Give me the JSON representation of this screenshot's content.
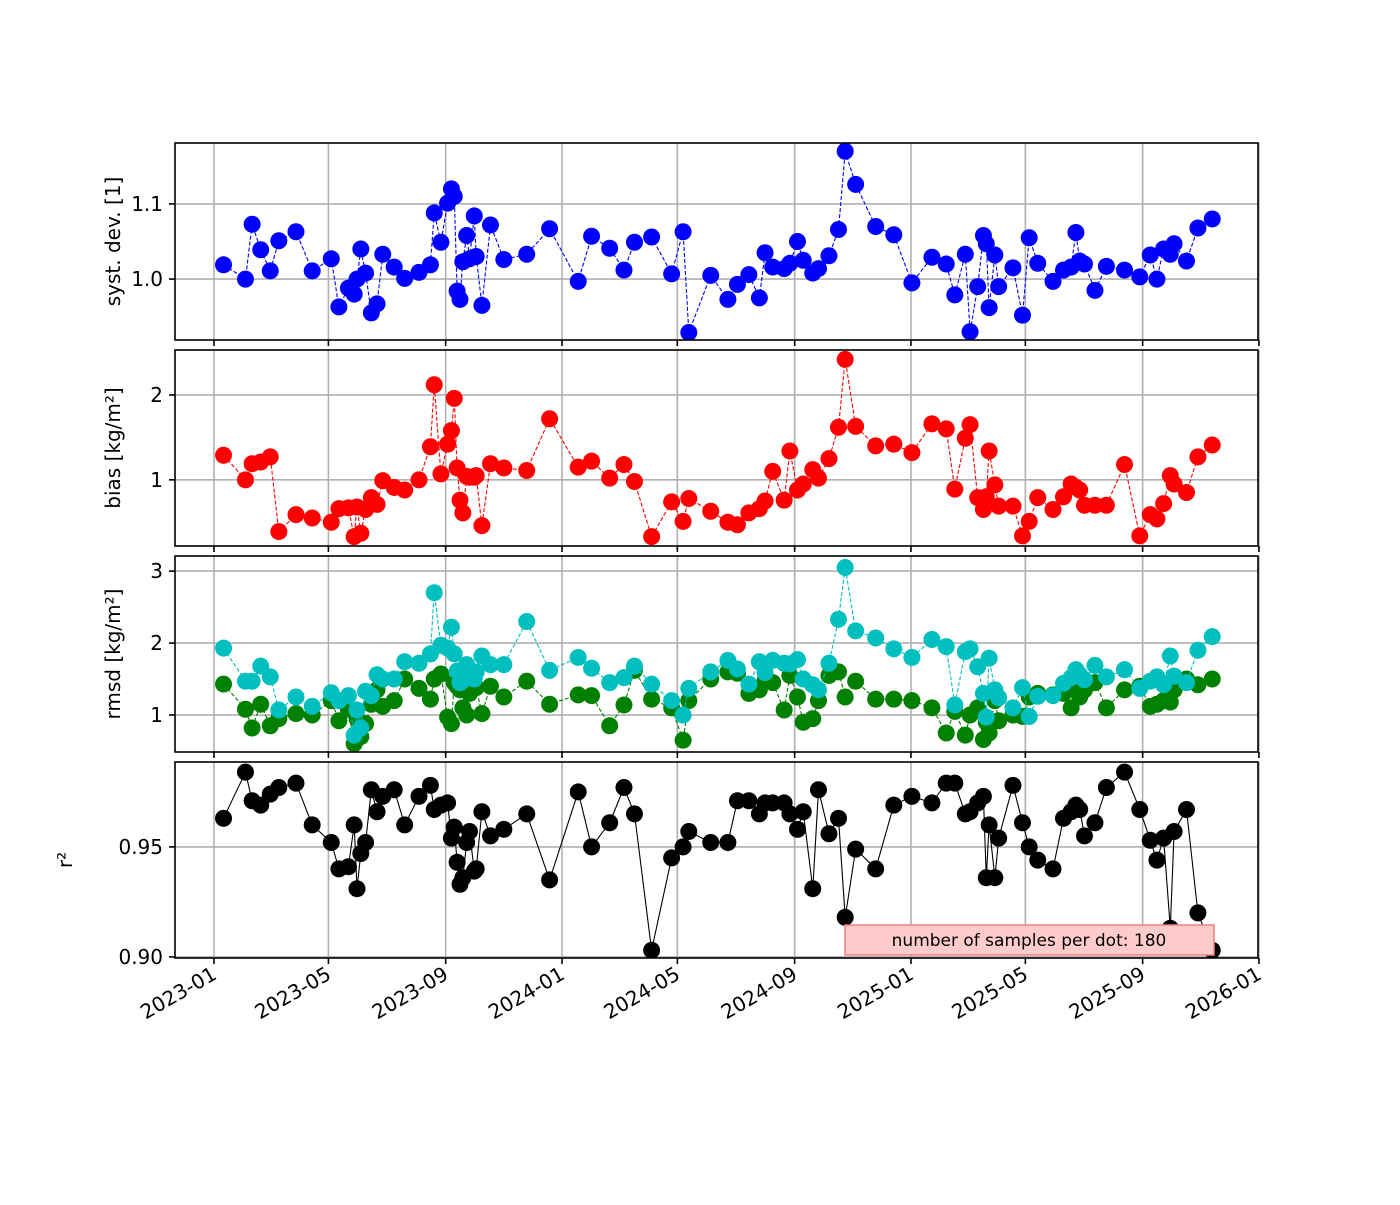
{
  "chart_data": {
    "type": "line",
    "x_axis": {
      "ticks": [
        "2023-01",
        "2023-05",
        "2023-09",
        "2024-01",
        "2024-05",
        "2024-09",
        "2025-01",
        "2025-05",
        "2025-09",
        "2026-01"
      ],
      "range": [
        "2022-12-12",
        "2026-01-01"
      ]
    },
    "x": [
      "2023-01-11",
      "2023-02-03",
      "2023-02-10",
      "2023-02-19",
      "2023-03-01",
      "2023-03-10",
      "2023-03-28",
      "2023-04-14",
      "2023-05-04",
      "2023-05-12",
      "2023-05-22",
      "2023-05-28",
      "2023-05-31",
      "2023-06-04",
      "2023-06-09",
      "2023-06-15",
      "2023-06-21",
      "2023-06-27",
      "2023-07-09",
      "2023-07-20",
      "2023-08-04",
      "2023-08-16",
      "2023-08-20",
      "2023-08-27",
      "2023-09-03",
      "2023-09-07",
      "2023-09-10",
      "2023-09-13",
      "2023-09-16",
      "2023-09-19",
      "2023-09-23",
      "2023-09-26",
      "2023-10-01",
      "2023-10-03",
      "2023-10-09",
      "2023-10-18",
      "2023-11-01",
      "2023-11-25",
      "2023-12-19",
      "2024-01-18",
      "2024-02-01",
      "2024-02-20",
      "2024-03-06",
      "2024-03-17",
      "2024-04-04",
      "2024-04-25",
      "2024-05-07",
      "2024-05-13",
      "2024-06-05",
      "2024-06-23",
      "2024-07-03",
      "2024-07-15",
      "2024-07-26",
      "2024-08-01",
      "2024-08-09",
      "2024-08-21",
      "2024-08-27",
      "2024-09-04",
      "2024-09-10",
      "2024-09-20",
      "2024-09-26",
      "2024-10-07",
      "2024-10-17",
      "2024-10-24",
      "2024-11-04",
      "2024-11-25",
      "2024-12-14",
      "2025-01-02",
      "2025-01-23",
      "2025-02-07",
      "2025-02-16",
      "2025-02-27",
      "2025-03-04",
      "2025-03-12",
      "2025-03-18",
      "2025-03-21",
      "2025-03-24",
      "2025-03-30",
      "2025-04-03",
      "2025-04-18",
      "2025-04-28",
      "2025-05-05",
      "2025-05-14",
      "2025-05-30",
      "2025-06-10",
      "2025-06-18",
      "2025-06-23",
      "2025-06-27",
      "2025-07-02",
      "2025-07-13",
      "2025-07-25",
      "2025-08-13",
      "2025-08-29",
      "2025-09-09",
      "2025-09-16",
      "2025-09-23",
      "2025-09-30",
      "2025-10-04",
      "2025-10-17",
      "2025-10-29",
      "2025-11-13"
    ],
    "panels": [
      {
        "ylabel": "syst. dev. [1]",
        "ylim": [
          0.919,
          1.181
        ],
        "yticks": [
          "1.0",
          "1.1"
        ],
        "ytick_values": [
          1.0,
          1.1
        ],
        "series": [
          {
            "name": "syst. dev.",
            "color": "#0000ff",
            "linestyle": "dashed",
            "values": [
              1.019,
              1.0,
              1.073,
              1.039,
              1.011,
              1.051,
              1.063,
              1.011,
              1.027,
              0.963,
              0.988,
              0.98,
              1.0,
              1.04,
              1.008,
              0.955,
              0.967,
              1.033,
              1.016,
              1.001,
              1.009,
              1.019,
              1.088,
              1.049,
              1.101,
              1.12,
              1.11,
              0.984,
              0.973,
              1.023,
              1.058,
              1.027,
              1.084,
              1.03,
              0.965,
              1.072,
              1.026,
              1.033,
              1.067,
              0.997,
              1.057,
              1.041,
              1.012,
              1.049,
              1.056,
              1.007,
              1.063,
              0.929,
              1.005,
              0.973,
              0.993,
              1.006,
              0.975,
              1.035,
              1.016,
              1.014,
              1.021,
              1.05,
              1.025,
              1.008,
              1.014,
              1.031,
              1.066,
              1.17,
              1.126,
              1.07,
              1.059,
              0.995,
              1.029,
              1.02,
              0.979,
              1.033,
              0.93,
              0.99,
              1.058,
              1.047,
              0.962,
              1.032,
              0.99,
              1.015,
              0.952,
              1.055,
              1.021,
              0.997,
              1.012,
              1.016,
              1.062,
              1.024,
              1.02,
              0.985,
              1.017,
              1.012,
              1.003,
              1.032,
              1.0,
              1.04,
              1.033,
              1.047,
              1.024,
              1.068,
              1.08
            ]
          }
        ]
      },
      {
        "ylabel": "bias [kg/m²]",
        "ylim": [
          0.22,
          2.53
        ],
        "yticks": [
          "1",
          "2"
        ],
        "ytick_values": [
          1,
          2
        ],
        "series": [
          {
            "name": "bias",
            "color": "#ff0000",
            "linestyle": "dashed",
            "values": [
              1.29,
              1.0,
              1.19,
              1.21,
              1.27,
              0.39,
              0.59,
              0.55,
              0.5,
              0.66,
              0.67,
              0.33,
              0.68,
              0.37,
              0.65,
              0.79,
              0.71,
              0.99,
              0.91,
              0.88,
              1.0,
              1.39,
              2.12,
              1.07,
              1.42,
              1.58,
              1.96,
              1.14,
              0.76,
              0.61,
              1.04,
              1.03,
              1.03,
              1.05,
              0.46,
              1.19,
              1.14,
              1.11,
              1.72,
              1.15,
              1.22,
              1.02,
              1.18,
              0.98,
              0.33,
              0.74,
              0.51,
              0.78,
              0.63,
              0.5,
              0.47,
              0.61,
              0.66,
              0.75,
              1.1,
              0.76,
              1.34,
              0.88,
              0.95,
              1.12,
              1.02,
              1.25,
              1.62,
              2.42,
              1.63,
              1.4,
              1.42,
              1.32,
              1.66,
              1.6,
              0.89,
              1.49,
              1.65,
              0.79,
              0.65,
              0.8,
              1.34,
              0.94,
              0.69,
              0.69,
              0.34,
              0.51,
              0.79,
              0.65,
              0.8,
              0.95,
              0.91,
              0.88,
              0.7,
              0.7,
              0.7,
              1.18,
              0.34,
              0.59,
              0.54,
              0.72,
              1.05,
              0.95,
              0.85,
              1.27,
              1.41
            ]
          }
        ]
      },
      {
        "ylabel": "rmsd [kg/m²]",
        "ylim": [
          0.486,
          3.21
        ],
        "yticks": [
          "1",
          "2",
          "3"
        ],
        "ytick_values": [
          1,
          2,
          3
        ],
        "series": [
          {
            "name": "rmsd (green)",
            "color": "#008000",
            "linestyle": "dashed",
            "values": [
              1.43,
              1.08,
              0.82,
              1.15,
              0.85,
              0.95,
              1.02,
              1.0,
              1.2,
              0.92,
              1.08,
              0.6,
              0.95,
              0.7,
              0.88,
              1.15,
              1.35,
              1.12,
              1.2,
              1.5,
              1.37,
              1.22,
              1.5,
              1.57,
              0.97,
              0.88,
              1.45,
              1.4,
              1.35,
              1.1,
              1.0,
              1.3,
              1.4,
              1.38,
              1.02,
              1.4,
              1.25,
              1.47,
              1.15,
              1.28,
              1.27,
              0.85,
              1.14,
              1.62,
              1.22,
              1.1,
              0.65,
              1.2,
              1.5,
              1.6,
              1.58,
              1.3,
              1.35,
              1.48,
              1.45,
              1.07,
              1.55,
              1.25,
              0.9,
              0.95,
              1.2,
              1.55,
              1.6,
              1.25,
              1.47,
              1.22,
              1.22,
              1.2,
              1.1,
              0.75,
              1.05,
              0.72,
              1.0,
              1.1,
              0.66,
              0.9,
              0.75,
              1.2,
              0.92,
              1.0,
              0.98,
              1.25,
              1.3,
              1.28,
              1.3,
              1.1,
              1.35,
              1.25,
              1.35,
              1.45,
              1.1,
              1.35,
              1.4,
              1.12,
              1.15,
              1.2,
              1.18,
              1.35,
              1.5,
              1.42,
              1.5
            ]
          },
          {
            "name": "rmsd (cyan)",
            "color": "#00bfbf",
            "linestyle": "dashed",
            "values": [
              1.93,
              1.47,
              1.47,
              1.68,
              1.53,
              1.07,
              1.25,
              1.12,
              1.31,
              1.2,
              1.27,
              0.72,
              1.07,
              0.82,
              1.33,
              1.27,
              1.56,
              1.5,
              1.5,
              1.74,
              1.72,
              1.85,
              2.7,
              1.97,
              1.93,
              2.22,
              1.85,
              1.61,
              1.45,
              1.48,
              1.7,
              1.57,
              1.5,
              1.6,
              1.82,
              1.7,
              1.7,
              2.3,
              1.62,
              1.8,
              1.65,
              1.45,
              1.52,
              1.68,
              1.43,
              1.2,
              1.0,
              1.37,
              1.6,
              1.76,
              1.64,
              1.43,
              1.74,
              1.59,
              1.76,
              1.72,
              1.71,
              1.77,
              1.5,
              1.42,
              1.35,
              1.72,
              2.33,
              3.05,
              2.17,
              2.07,
              1.92,
              1.8,
              2.05,
              1.95,
              1.14,
              1.88,
              1.92,
              1.67,
              1.3,
              0.97,
              1.79,
              1.35,
              1.24,
              1.1,
              1.38,
              0.98,
              1.26,
              1.27,
              1.44,
              1.52,
              1.63,
              1.56,
              1.49,
              1.69,
              1.53,
              1.63,
              1.37,
              1.47,
              1.53,
              1.42,
              1.82,
              1.54,
              1.45,
              1.9,
              2.09
            ]
          }
        ]
      },
      {
        "ylabel": "r²",
        "ylim": [
          0.8995,
          0.9886
        ],
        "yticks": [
          "0.90",
          "0.95"
        ],
        "ytick_values": [
          0.9,
          0.95
        ],
        "annotation": "number of samples per dot: 180",
        "series": [
          {
            "name": "r²",
            "color": "#000000",
            "linestyle": "solid",
            "values": [
              0.963,
              0.984,
              0.971,
              0.969,
              0.974,
              0.977,
              0.979,
              0.96,
              0.952,
              0.94,
              0.941,
              0.96,
              0.931,
              0.947,
              0.952,
              0.976,
              0.966,
              0.973,
              0.976,
              0.96,
              0.973,
              0.978,
              0.967,
              0.969,
              0.97,
              0.954,
              0.959,
              0.943,
              0.933,
              0.936,
              0.952,
              0.957,
              0.939,
              0.94,
              0.966,
              0.955,
              0.958,
              0.965,
              0.935,
              0.975,
              0.95,
              0.961,
              0.977,
              0.965,
              0.903,
              0.945,
              0.95,
              0.957,
              0.952,
              0.952,
              0.971,
              0.971,
              0.965,
              0.97,
              0.97,
              0.97,
              0.965,
              0.958,
              0.966,
              0.931,
              0.976,
              0.956,
              0.963,
              0.918,
              0.949,
              0.94,
              0.969,
              0.973,
              0.97,
              0.979,
              0.979,
              0.965,
              0.966,
              0.97,
              0.973,
              0.936,
              0.96,
              0.936,
              0.954,
              0.978,
              0.961,
              0.95,
              0.944,
              0.94,
              0.963,
              0.966,
              0.969,
              0.967,
              0.955,
              0.961,
              0.977,
              0.984,
              0.967,
              0.953,
              0.944,
              0.954,
              0.913,
              0.957,
              0.967,
              0.92,
              0.903
            ]
          }
        ]
      }
    ]
  }
}
